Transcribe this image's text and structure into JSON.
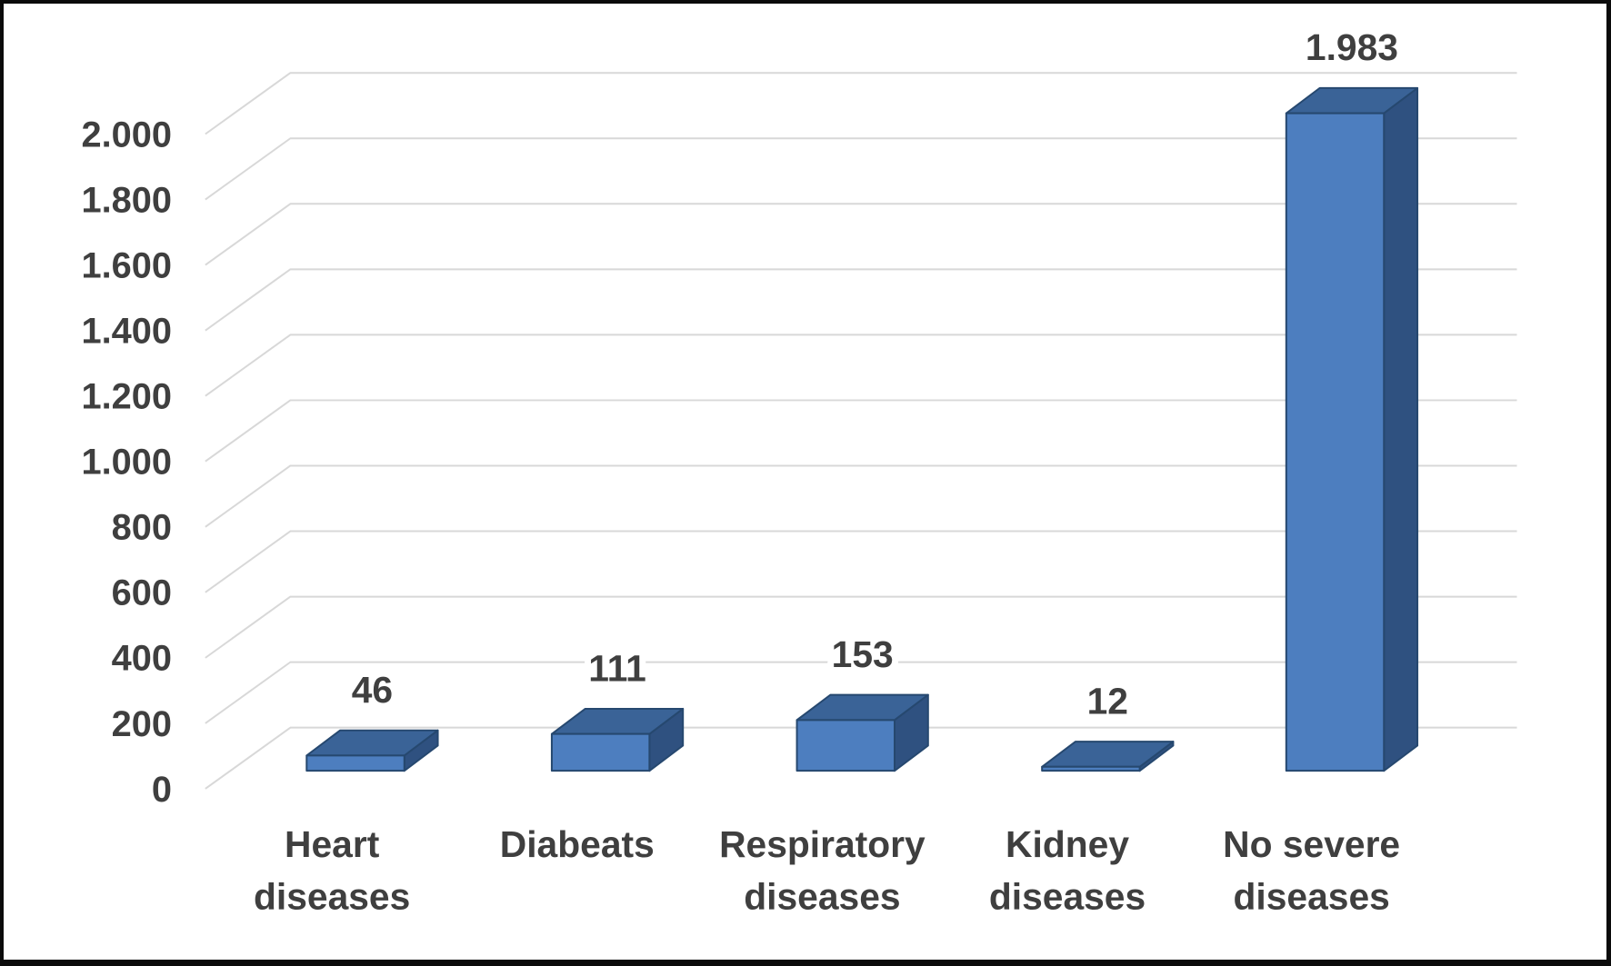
{
  "chart_data": {
    "type": "bar",
    "variant": "3d-column",
    "title": "",
    "legend": "none",
    "grid": true,
    "categories": [
      "Heart diseases",
      "Diabeats",
      "Respiratory diseases",
      "Kidney diseases",
      "No severe diseases"
    ],
    "category_lines": [
      [
        "Heart",
        "diseases"
      ],
      [
        "Diabeats"
      ],
      [
        "Respiratory",
        "diseases"
      ],
      [
        "Kidney",
        "diseases"
      ],
      [
        "No severe",
        "diseases"
      ]
    ],
    "values": [
      46,
      111,
      153,
      12,
      1983
    ],
    "data_labels": [
      "46",
      "111",
      "153",
      "12",
      "1.983"
    ],
    "y_axis": {
      "tick_values": [
        0,
        200,
        400,
        600,
        800,
        1000,
        1200,
        1400,
        1600,
        1800,
        2000
      ],
      "tick_labels": [
        "0",
        "200",
        "400",
        "600",
        "800",
        "1.000",
        "1.200",
        "1.400",
        "1.600",
        "1.800",
        "2.000"
      ]
    },
    "ylim": [
      0,
      2000
    ],
    "colors": {
      "bar_front": "#4d7ebf",
      "bar_top": "#3a6397",
      "bar_side": "#2f5180",
      "bar_edge": "#26486f",
      "gridline": "#d8d8d8",
      "text": "#3f3f3f",
      "background": "#ffffff",
      "frame": "#0b0b0b"
    }
  }
}
